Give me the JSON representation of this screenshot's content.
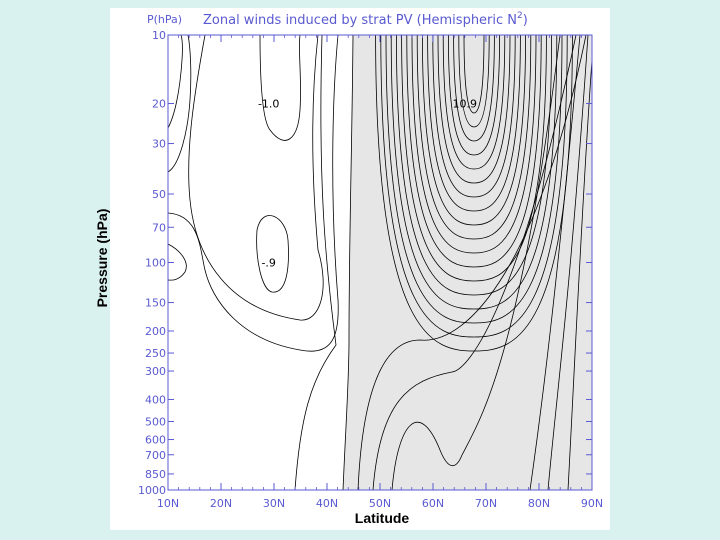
{
  "chart_data": {
    "type": "contour",
    "title": "Zonal winds induced by strat PV (Hemispheric N",
    "title_superscript": "2",
    "title_close": ")",
    "yaxis_unit_label": "P(hPa)",
    "ylabel": "Pressure (hPa)",
    "xlabel": "Latitude",
    "x_ticks": [
      "10N",
      "20N",
      "30N",
      "40N",
      "50N",
      "60N",
      "70N",
      "80N",
      "90N"
    ],
    "x_values": [
      10,
      20,
      30,
      40,
      50,
      60,
      70,
      80,
      90
    ],
    "xlim": [
      10,
      90
    ],
    "y_ticks": [
      "10",
      "20",
      "30",
      "50",
      "70",
      "100",
      "150",
      "200",
      "250",
      "300",
      "400",
      "500",
      "600",
      "700",
      "850",
      "1000"
    ],
    "y_values": [
      10,
      20,
      30,
      50,
      70,
      100,
      150,
      200,
      250,
      300,
      400,
      500,
      600,
      700,
      850,
      1000
    ],
    "ylim": [
      1000,
      10
    ],
    "y_scale": "log",
    "contour_labels": [
      {
        "text": "-1.0",
        "lat": 29,
        "p": 20
      },
      {
        "text": "10.9",
        "lat": 66,
        "p": 20
      },
      {
        "text": "-.9",
        "lat": 29,
        "p": 100
      }
    ],
    "shading": "positive winds shaded light gray",
    "colors": {
      "background": "#d9f2ef",
      "axis": "#5a5ad2",
      "title": "#5a5ad2",
      "shade": "#e6e6e6",
      "contour": "#000000"
    }
  }
}
